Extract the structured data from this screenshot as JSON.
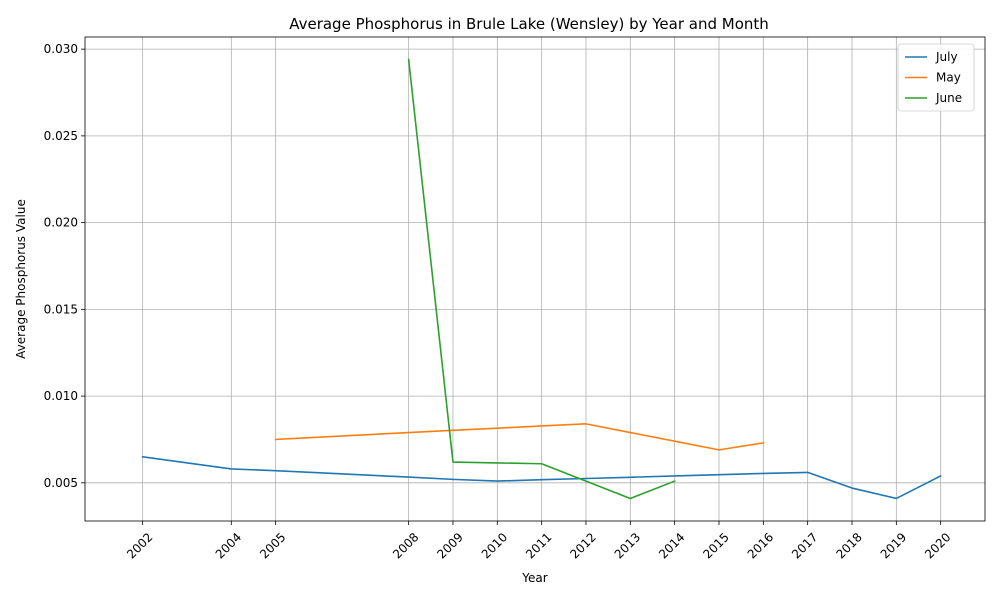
{
  "chart_data": {
    "type": "line",
    "title": "Average Phosphorus in Brule Lake (Wensley) by Year and Month",
    "xlabel": "Year",
    "ylabel": "Average Phosphorus Value",
    "xlim": [
      2000.7,
      2021.0
    ],
    "ylim": [
      0.0028,
      0.0307
    ],
    "xticks": [
      2002,
      2004,
      2005,
      2008,
      2009,
      2010,
      2011,
      2012,
      2013,
      2014,
      2015,
      2016,
      2017,
      2018,
      2019,
      2020
    ],
    "yticks": [
      0.005,
      0.01,
      0.015,
      0.02,
      0.025,
      0.03
    ],
    "ytick_labels": [
      "0.005",
      "0.010",
      "0.015",
      "0.020",
      "0.025",
      "0.030"
    ],
    "grid": true,
    "legend_position": "top-right",
    "series": [
      {
        "name": "July",
        "color": "#1f77b4",
        "points": [
          [
            2002,
            0.0065
          ],
          [
            2004,
            0.0058
          ],
          [
            2005,
            0.0057
          ],
          [
            2008,
            0.00533
          ],
          [
            2009,
            0.0052
          ],
          [
            2010,
            0.0051
          ],
          [
            2011,
            0.00518
          ],
          [
            2012,
            0.00525
          ],
          [
            2013,
            0.00532
          ],
          [
            2014,
            0.0054
          ],
          [
            2015,
            0.00547
          ],
          [
            2016,
            0.00554
          ],
          [
            2017,
            0.0056
          ],
          [
            2018,
            0.0047
          ],
          [
            2019,
            0.0041
          ],
          [
            2020,
            0.0054
          ]
        ]
      },
      {
        "name": "May",
        "color": "#ff7f0e",
        "points": [
          [
            2005,
            0.0075
          ],
          [
            2008,
            0.0079
          ],
          [
            2009,
            0.00803
          ],
          [
            2010,
            0.00815
          ],
          [
            2011,
            0.00828
          ],
          [
            2012,
            0.0084
          ],
          [
            2013,
            0.0079
          ],
          [
            2014,
            0.0074
          ],
          [
            2015,
            0.0069
          ],
          [
            2016,
            0.0073
          ]
        ]
      },
      {
        "name": "June",
        "color": "#2ca02c",
        "points": [
          [
            2008,
            0.0294
          ],
          [
            2009,
            0.0062
          ],
          [
            2010,
            0.00615
          ],
          [
            2011,
            0.0061
          ],
          [
            2012,
            0.0051
          ],
          [
            2013,
            0.0041
          ],
          [
            2014,
            0.0051
          ]
        ]
      }
    ]
  }
}
